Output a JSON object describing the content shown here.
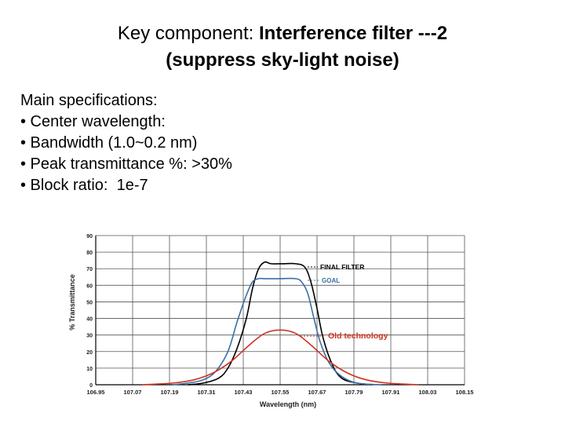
{
  "title": {
    "prefix": "Key component: ",
    "bold_part": "Interference filter ---2",
    "line2": "(suppress sky-light noise)"
  },
  "specs": {
    "heading": "Main specifications:",
    "items": [
      "• Center wavelength:",
      "• Bandwidth (1.0~0.2 nm)",
      "• Peak transmittance %: >30%",
      "• Block ratio:  1e-7"
    ]
  },
  "chart_data": {
    "type": "line",
    "xlabel": "Wavelength (nm)",
    "ylabel": "% Transmittance",
    "x_tick_labels": [
      "106.95",
      "107.07",
      "107.19",
      "107.31",
      "107.43",
      "107.55",
      "107.67",
      "107.79",
      "107.91",
      "108.03",
      "108.15"
    ],
    "y_ticks": [
      0,
      10,
      20,
      30,
      40,
      50,
      60,
      70,
      80,
      90
    ],
    "y_tick_labels": [
      "0",
      "10",
      "20",
      "30",
      "40",
      "50",
      "60",
      "70",
      "80",
      "90"
    ],
    "xlim": [
      106.95,
      108.15
    ],
    "ylim": [
      0,
      90
    ],
    "grid": true,
    "series": [
      {
        "name": "FINAL FILTER",
        "color": "#000000",
        "x": [
          107.25,
          107.3,
          107.35,
          107.38,
          107.41,
          107.44,
          107.46,
          107.48,
          107.5,
          107.52,
          107.56,
          107.6,
          107.63,
          107.65,
          107.67,
          107.69,
          107.72,
          107.75,
          107.8,
          107.85
        ],
        "y": [
          0,
          1,
          4,
          10,
          22,
          40,
          58,
          70,
          74,
          73,
          73,
          73,
          71,
          62,
          46,
          28,
          12,
          4,
          1,
          0
        ]
      },
      {
        "name": "GOAL",
        "color": "#3a6ea5",
        "x": [
          107.2,
          107.25,
          107.3,
          107.34,
          107.38,
          107.41,
          107.44,
          107.46,
          107.48,
          107.5,
          107.55,
          107.6,
          107.62,
          107.64,
          107.66,
          107.68,
          107.71,
          107.75,
          107.8,
          107.88
        ],
        "y": [
          0,
          1,
          3,
          8,
          20,
          38,
          54,
          62,
          64,
          64,
          64,
          64,
          62,
          55,
          40,
          26,
          13,
          5,
          1,
          0
        ]
      },
      {
        "name": "Old technology",
        "color": "#cc3322",
        "x": [
          107.1,
          107.2,
          107.27,
          107.33,
          107.39,
          107.45,
          107.5,
          107.55,
          107.6,
          107.65,
          107.71,
          107.77,
          107.83,
          107.9,
          108.0
        ],
        "y": [
          0,
          1,
          3,
          7,
          14,
          24,
          31,
          33,
          31,
          24,
          14,
          7,
          3,
          1,
          0
        ]
      }
    ]
  }
}
